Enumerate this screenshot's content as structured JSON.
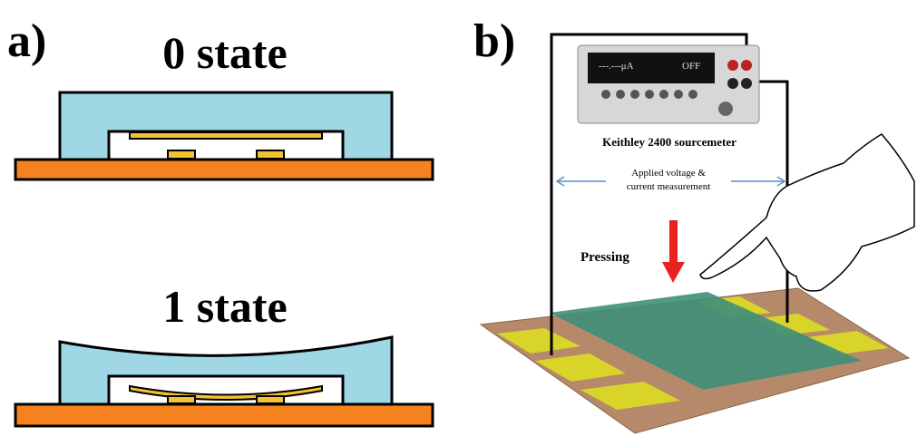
{
  "panel_a": {
    "label": "a)",
    "state_0": "0 state",
    "state_1": "1 state"
  },
  "panel_b": {
    "label": "b)",
    "meter_name": "Keithley 2400 sourcemeter",
    "display_reading": "---.---μA",
    "display_status": "OFF",
    "measure_line_1": "Applied voltage &",
    "measure_line_2": "current measurement",
    "action": "Pressing"
  }
}
